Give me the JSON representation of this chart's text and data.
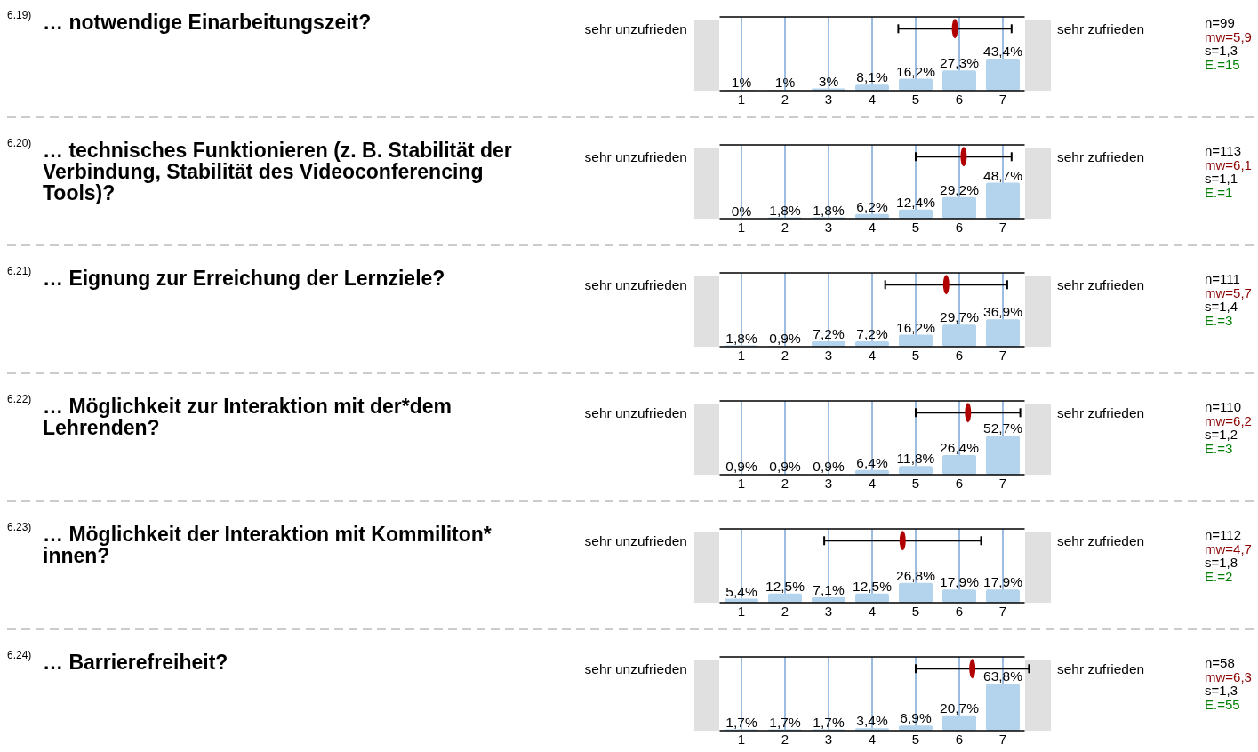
{
  "chart_data": [
    {
      "type": "bar",
      "annotations": [
        "6.19)",
        "… notwendige Einarbeitungszeit?",
        "sehr unzufrieden",
        "sehr zufrieden",
        "n=99",
        "mw=5,9",
        "s=1,3",
        "E.=15"
      ],
      "x": [
        1,
        2,
        3,
        4,
        5,
        6,
        7
      ],
      "xlim": [
        0.5,
        7.5
      ],
      "xticks": [
        1,
        2,
        3,
        4,
        5,
        6,
        7
      ],
      "ylim": [
        0,
        100
      ],
      "tick_labels": "x",
      "grid": "x",
      "series": [
        {
          "color": "#b3d4ec",
          "values": [
            1,
            1,
            3,
            8.1,
            16.2,
            27.3,
            43.4
          ],
          "value_labels": [
            "1%",
            "1%",
            "3%",
            "8,1%",
            "16,2%",
            "27,3%",
            "43,4%"
          ]
        },
        {
          "type": "scatter",
          "color": "#b00000",
          "x": [
            5.9
          ],
          "values": [
            84
          ],
          "xerrors": [
            1.3
          ]
        }
      ]
    },
    {
      "type": "bar",
      "annotations": [
        "6.20)",
        "… technisches Funktionieren (z. B. Stabilität der Verbindung, Stabilität des Videoconferencing Tools)?",
        "sehr unzufrieden",
        "sehr zufrieden",
        "n=113",
        "mw=6,1",
        "s=1,1",
        "E.=1"
      ],
      "x": [
        1,
        2,
        3,
        4,
        5,
        6,
        7
      ],
      "xlim": [
        0.5,
        7.5
      ],
      "xticks": [
        1,
        2,
        3,
        4,
        5,
        6,
        7
      ],
      "ylim": [
        0,
        100
      ],
      "tick_labels": "x",
      "grid": "x",
      "series": [
        {
          "color": "#b3d4ec",
          "values": [
            0,
            1.8,
            1.8,
            6.2,
            12.4,
            29.2,
            48.7
          ],
          "value_labels": [
            "0%",
            "1,8%",
            "1,8%",
            "6,2%",
            "12,4%",
            "29,2%",
            "48,7%"
          ]
        },
        {
          "type": "scatter",
          "color": "#b00000",
          "x": [
            6.1
          ],
          "values": [
            84
          ],
          "xerrors": [
            1.1
          ]
        }
      ]
    },
    {
      "type": "bar",
      "annotations": [
        "6.21)",
        "… Eignung zur Erreichung der Lernziele?",
        "sehr unzufrieden",
        "sehr zufrieden",
        "n=111",
        "mw=5,7",
        "s=1,4",
        "E.=3"
      ],
      "x": [
        1,
        2,
        3,
        4,
        5,
        6,
        7
      ],
      "xlim": [
        0.5,
        7.5
      ],
      "xticks": [
        1,
        2,
        3,
        4,
        5,
        6,
        7
      ],
      "ylim": [
        0,
        100
      ],
      "tick_labels": "x",
      "grid": "x",
      "series": [
        {
          "color": "#b3d4ec",
          "values": [
            1.8,
            0.9,
            7.2,
            7.2,
            16.2,
            29.7,
            36.9
          ],
          "value_labels": [
            "1,8%",
            "0,9%",
            "7,2%",
            "7,2%",
            "16,2%",
            "29,7%",
            "36,9%"
          ]
        },
        {
          "type": "scatter",
          "color": "#b00000",
          "x": [
            5.7
          ],
          "values": [
            84
          ],
          "xerrors": [
            1.4
          ]
        }
      ]
    },
    {
      "type": "bar",
      "annotations": [
        "6.22)",
        "… Möglichkeit zur Interaktion mit der*dem Lehrenden?",
        "sehr unzufrieden",
        "sehr zufrieden",
        "n=110",
        "mw=6,2",
        "s=1,2",
        "E.=3"
      ],
      "x": [
        1,
        2,
        3,
        4,
        5,
        6,
        7
      ],
      "xlim": [
        0.5,
        7.5
      ],
      "xticks": [
        1,
        2,
        3,
        4,
        5,
        6,
        7
      ],
      "ylim": [
        0,
        100
      ],
      "tick_labels": "x",
      "grid": "x",
      "series": [
        {
          "color": "#b3d4ec",
          "values": [
            0.9,
            0.9,
            0.9,
            6.4,
            11.8,
            26.4,
            52.7
          ],
          "value_labels": [
            "0,9%",
            "0,9%",
            "0,9%",
            "6,4%",
            "11,8%",
            "26,4%",
            "52,7%"
          ]
        },
        {
          "type": "scatter",
          "color": "#b00000",
          "x": [
            6.2
          ],
          "values": [
            84
          ],
          "xerrors": [
            1.2
          ]
        }
      ]
    },
    {
      "type": "bar",
      "annotations": [
        "6.23)",
        "… Möglichkeit der Interaktion mit Kommiliton*innen?",
        "sehr unzufrieden",
        "sehr zufrieden",
        "n=112",
        "mw=4,7",
        "s=1,8",
        "E.=2"
      ],
      "x": [
        1,
        2,
        3,
        4,
        5,
        6,
        7
      ],
      "xlim": [
        0.5,
        7.5
      ],
      "xticks": [
        1,
        2,
        3,
        4,
        5,
        6,
        7
      ],
      "ylim": [
        0,
        100
      ],
      "tick_labels": "x",
      "grid": "x",
      "series": [
        {
          "color": "#b3d4ec",
          "values": [
            5.4,
            12.5,
            7.1,
            12.5,
            26.8,
            17.9,
            17.9
          ],
          "value_labels": [
            "5,4%",
            "12,5%",
            "7,1%",
            "12,5%",
            "26,8%",
            "17,9%",
            "17,9%"
          ]
        },
        {
          "type": "scatter",
          "color": "#b00000",
          "x": [
            4.7
          ],
          "values": [
            84
          ],
          "xerrors": [
            1.8
          ]
        }
      ]
    },
    {
      "type": "bar",
      "annotations": [
        "6.24)",
        "… Barrierefreiheit?",
        "sehr unzufrieden",
        "sehr zufrieden",
        "n=58",
        "mw=6,3",
        "s=1,3",
        "E.=55"
      ],
      "x": [
        1,
        2,
        3,
        4,
        5,
        6,
        7
      ],
      "xlim": [
        0.5,
        7.5
      ],
      "xticks": [
        1,
        2,
        3,
        4,
        5,
        6,
        7
      ],
      "ylim": [
        0,
        100
      ],
      "tick_labels": "x",
      "grid": "x",
      "series": [
        {
          "color": "#b3d4ec",
          "values": [
            1.7,
            1.7,
            1.7,
            3.4,
            6.9,
            20.7,
            63.8
          ],
          "value_labels": [
            "1,7%",
            "1,7%",
            "1,7%",
            "3,4%",
            "6,9%",
            "20,7%",
            "63,8%"
          ]
        },
        {
          "type": "scatter",
          "color": "#b00000",
          "x": [
            6.3
          ],
          "values": [
            84
          ],
          "xerrors": [
            1.3
          ]
        }
      ]
    }
  ]
}
